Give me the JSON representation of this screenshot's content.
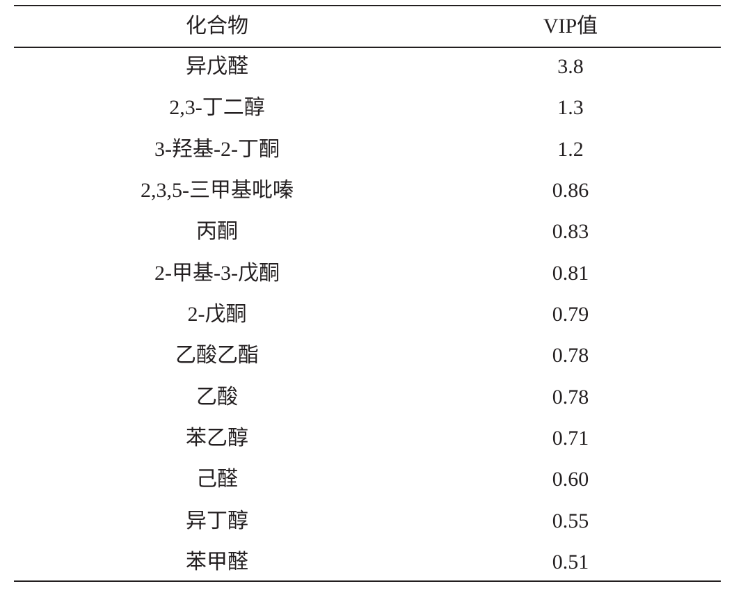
{
  "table": {
    "header": [
      "化合物",
      "VIP值"
    ],
    "rows": [
      [
        "异戊醛",
        "3.8"
      ],
      [
        "2,3-丁二醇",
        "1.3"
      ],
      [
        "3-羟基-2-丁酮",
        "1.2"
      ],
      [
        "2,3,5-三甲基吡嗪",
        "0.86"
      ],
      [
        "丙酮",
        "0.83"
      ],
      [
        "2-甲基-3-戊酮",
        "0.81"
      ],
      [
        "2-戊酮",
        "0.79"
      ],
      [
        "乙酸乙酯",
        "0.78"
      ],
      [
        "乙酸",
        "0.78"
      ],
      [
        "苯乙醇",
        "0.71"
      ],
      [
        "己醛",
        "0.60"
      ],
      [
        "异丁醇",
        "0.55"
      ],
      [
        "苯甲醛",
        "0.51"
      ]
    ]
  }
}
